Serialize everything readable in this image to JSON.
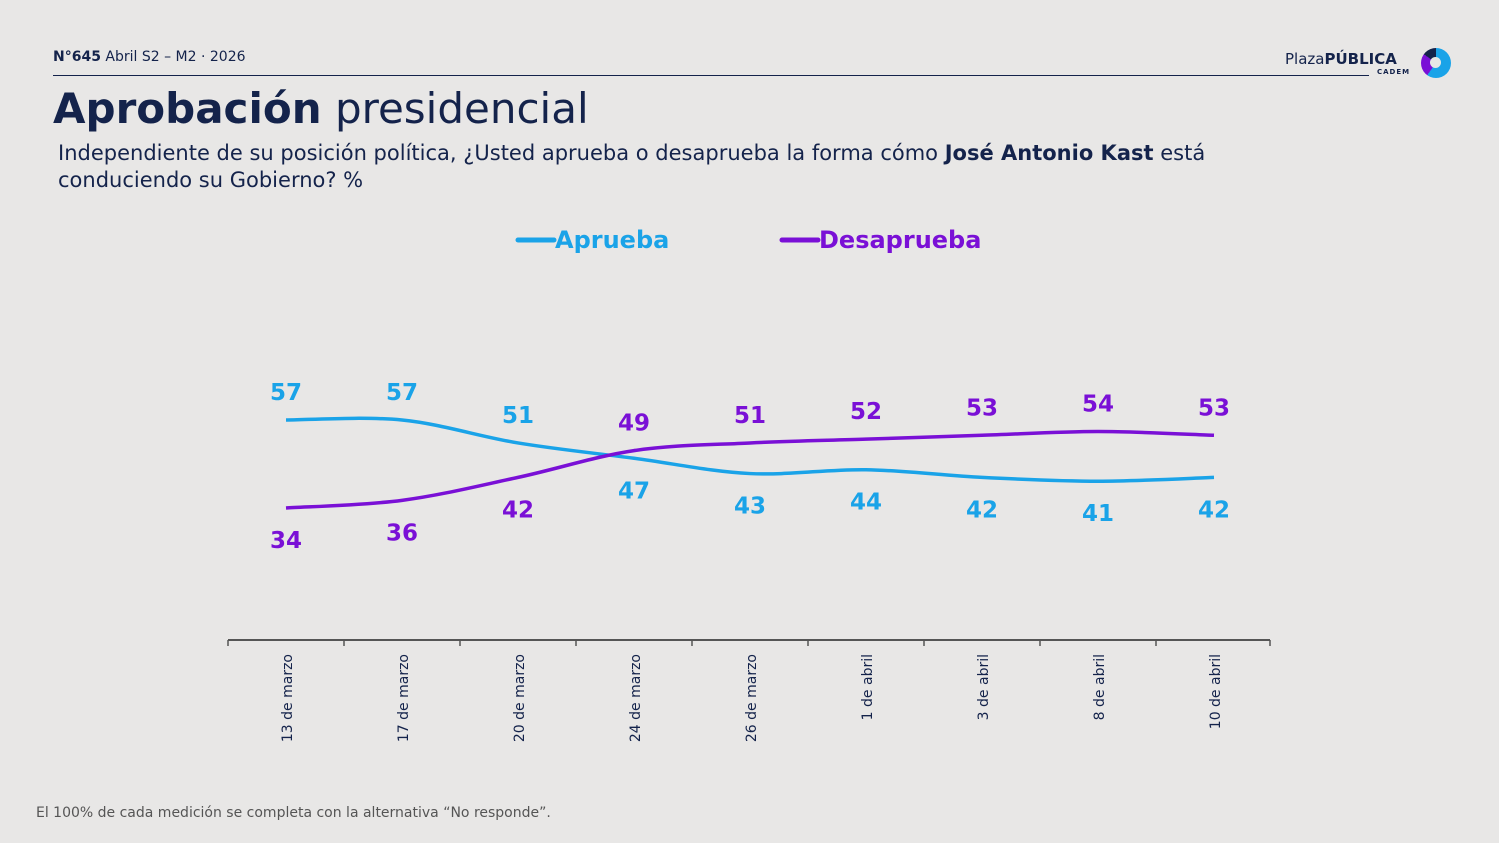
{
  "header": {
    "number": "N°645",
    "period": "Abril S2 – M2 · 2026"
  },
  "logo": {
    "part1": "Plaza",
    "part2": "PÚBLICA",
    "sub": "CADEM"
  },
  "title": {
    "bold": "Aprobación",
    "light": "presidencial"
  },
  "question": {
    "before": "Independiente de su posición política, ¿Usted aprueba o desaprueba la forma cómo ",
    "name": "José Antonio Kast",
    "after": " está conduciendo su Gobierno? %"
  },
  "footnote": "El 100% de cada medición se completa con la alternativa “No responde”.",
  "chart_data": {
    "type": "line",
    "title": "Aprobación presidencial",
    "categories": [
      "13 de marzo",
      "17 de marzo",
      "20 de marzo",
      "24 de marzo",
      "26 de marzo",
      "1 de abril",
      "3 de abril",
      "8 de abril",
      "10 de abril"
    ],
    "series": [
      {
        "name": "Aprueba",
        "color": "#1aa3e8",
        "values": [
          57,
          57,
          51,
          47,
          43,
          44,
          42,
          41,
          42
        ]
      },
      {
        "name": "Desaprueba",
        "color": "#7a10d6",
        "values": [
          34,
          36,
          42,
          49,
          51,
          52,
          53,
          54,
          53
        ]
      }
    ],
    "legend": "top-center",
    "grid": false
  }
}
